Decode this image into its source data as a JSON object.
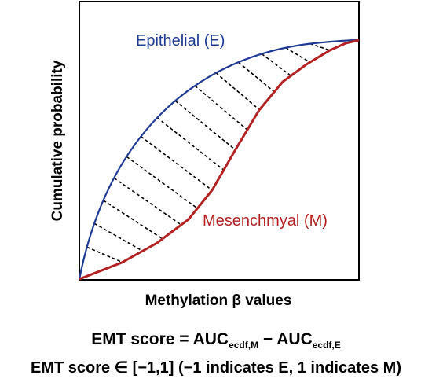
{
  "axes": {
    "xlabel": "Methylation β values",
    "ylabel": "Cumulative probability"
  },
  "curves": {
    "epithelial": {
      "label": "Epithelial (E)",
      "color": "#1f3a93"
    },
    "mesenchymal": {
      "label": "Mesenchmyal (M)",
      "color": "#b22222"
    }
  },
  "formula": {
    "line1": {
      "lhs": "EMT score = AUC",
      "sub_m": "ecdf,M",
      "minus": " − AUC",
      "sub_e": "ecdf,E"
    },
    "line2": "EMT score ∈ [−1,1] (−1 indicates E, 1 indicates M)"
  }
}
